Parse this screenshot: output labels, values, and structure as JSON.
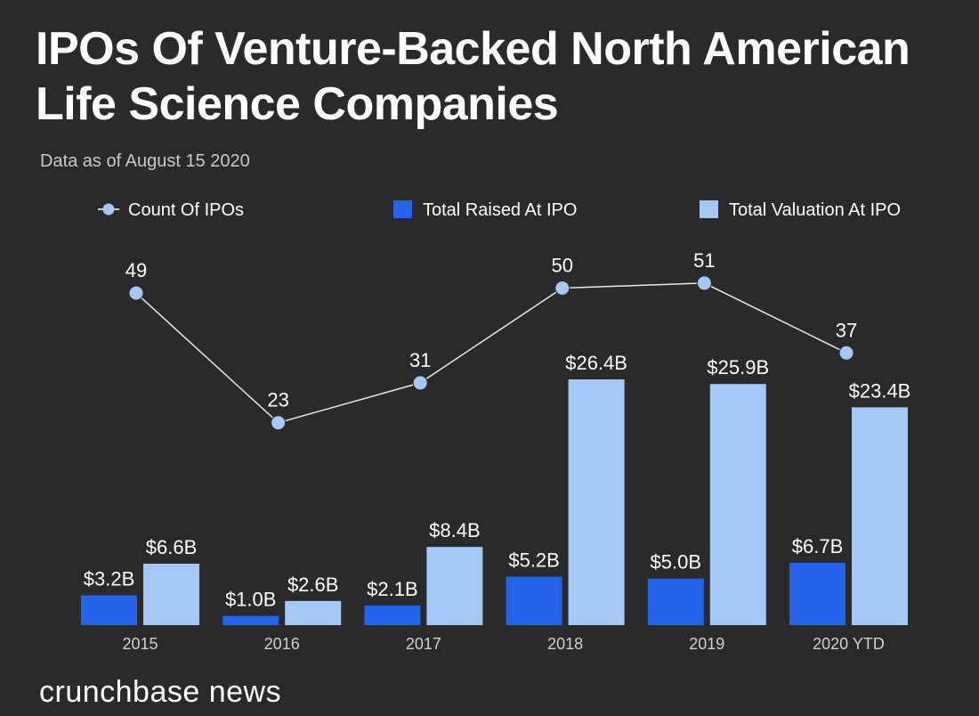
{
  "title": "IPOs Of Venture-Backed North American Life Science Companies",
  "subtitle": "Data as of August 15 2020",
  "brand": "crunchbase news",
  "chart_data": {
    "type": "bar",
    "categories": [
      "2015",
      "2016",
      "2017",
      "2018",
      "2019",
      "2020 YTD"
    ],
    "series": [
      {
        "name": "Total Raised At IPO",
        "type": "bar",
        "color": "#2563eb",
        "values": [
          3.2,
          1.0,
          2.1,
          5.2,
          5.0,
          6.7
        ],
        "labels": [
          "$3.2B",
          "$1.0B",
          "$2.1B",
          "$5.2B",
          "$5.0B",
          "$6.7B"
        ]
      },
      {
        "name": "Total Valuation At IPO",
        "type": "bar",
        "color": "#a4c8f8",
        "values": [
          6.6,
          2.6,
          8.4,
          26.4,
          25.9,
          23.4
        ],
        "labels": [
          "$6.6B",
          "$2.6B",
          "$8.4B",
          "$26.4B",
          "$25.9B",
          "$23.4B"
        ]
      },
      {
        "name": "Count Of IPOs",
        "type": "line",
        "color": "#a4c8f8",
        "values": [
          49,
          23,
          31,
          50,
          51,
          37
        ],
        "labels": [
          "49",
          "23",
          "31",
          "50",
          "51",
          "37"
        ]
      }
    ],
    "legend_position": "top",
    "grid": false
  }
}
